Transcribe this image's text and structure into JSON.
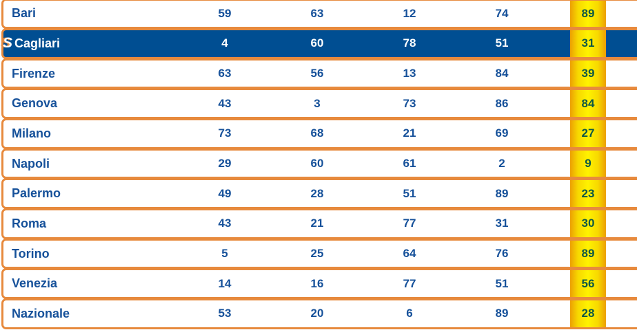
{
  "table": {
    "description": "lotto-extraction-results",
    "highlight_icon": "S",
    "colors": {
      "border_orange": "#E78A3D",
      "text_blue": "#16519A",
      "active_row_blue": "#004E92",
      "gold_band_center": "#FFF200",
      "gold_band_edge": "#EC9F03",
      "gold_number_green": "#0E5845"
    },
    "rows": [
      {
        "city": "Bari",
        "numbers": [
          "59",
          "63",
          "12",
          "74"
        ],
        "last": "89",
        "highlighted": false
      },
      {
        "city": "Cagliari",
        "numbers": [
          "4",
          "60",
          "78",
          "51"
        ],
        "last": "31",
        "highlighted": true
      },
      {
        "city": "Firenze",
        "numbers": [
          "63",
          "56",
          "13",
          "84"
        ],
        "last": "39",
        "highlighted": false
      },
      {
        "city": "Genova",
        "numbers": [
          "43",
          "3",
          "73",
          "86"
        ],
        "last": "84",
        "highlighted": false
      },
      {
        "city": "Milano",
        "numbers": [
          "73",
          "68",
          "21",
          "69"
        ],
        "last": "27",
        "highlighted": false
      },
      {
        "city": "Napoli",
        "numbers": [
          "29",
          "60",
          "61",
          "2"
        ],
        "last": "9",
        "highlighted": false
      },
      {
        "city": "Palermo",
        "numbers": [
          "49",
          "28",
          "51",
          "89"
        ],
        "last": "23",
        "highlighted": false
      },
      {
        "city": "Roma",
        "numbers": [
          "43",
          "21",
          "77",
          "31"
        ],
        "last": "30",
        "highlighted": false
      },
      {
        "city": "Torino",
        "numbers": [
          "5",
          "25",
          "64",
          "76"
        ],
        "last": "89",
        "highlighted": false
      },
      {
        "city": "Venezia",
        "numbers": [
          "14",
          "16",
          "77",
          "51"
        ],
        "last": "56",
        "highlighted": false
      },
      {
        "city": "Nazionale",
        "numbers": [
          "53",
          "20",
          "6",
          "89"
        ],
        "last": "28",
        "highlighted": false
      }
    ]
  }
}
